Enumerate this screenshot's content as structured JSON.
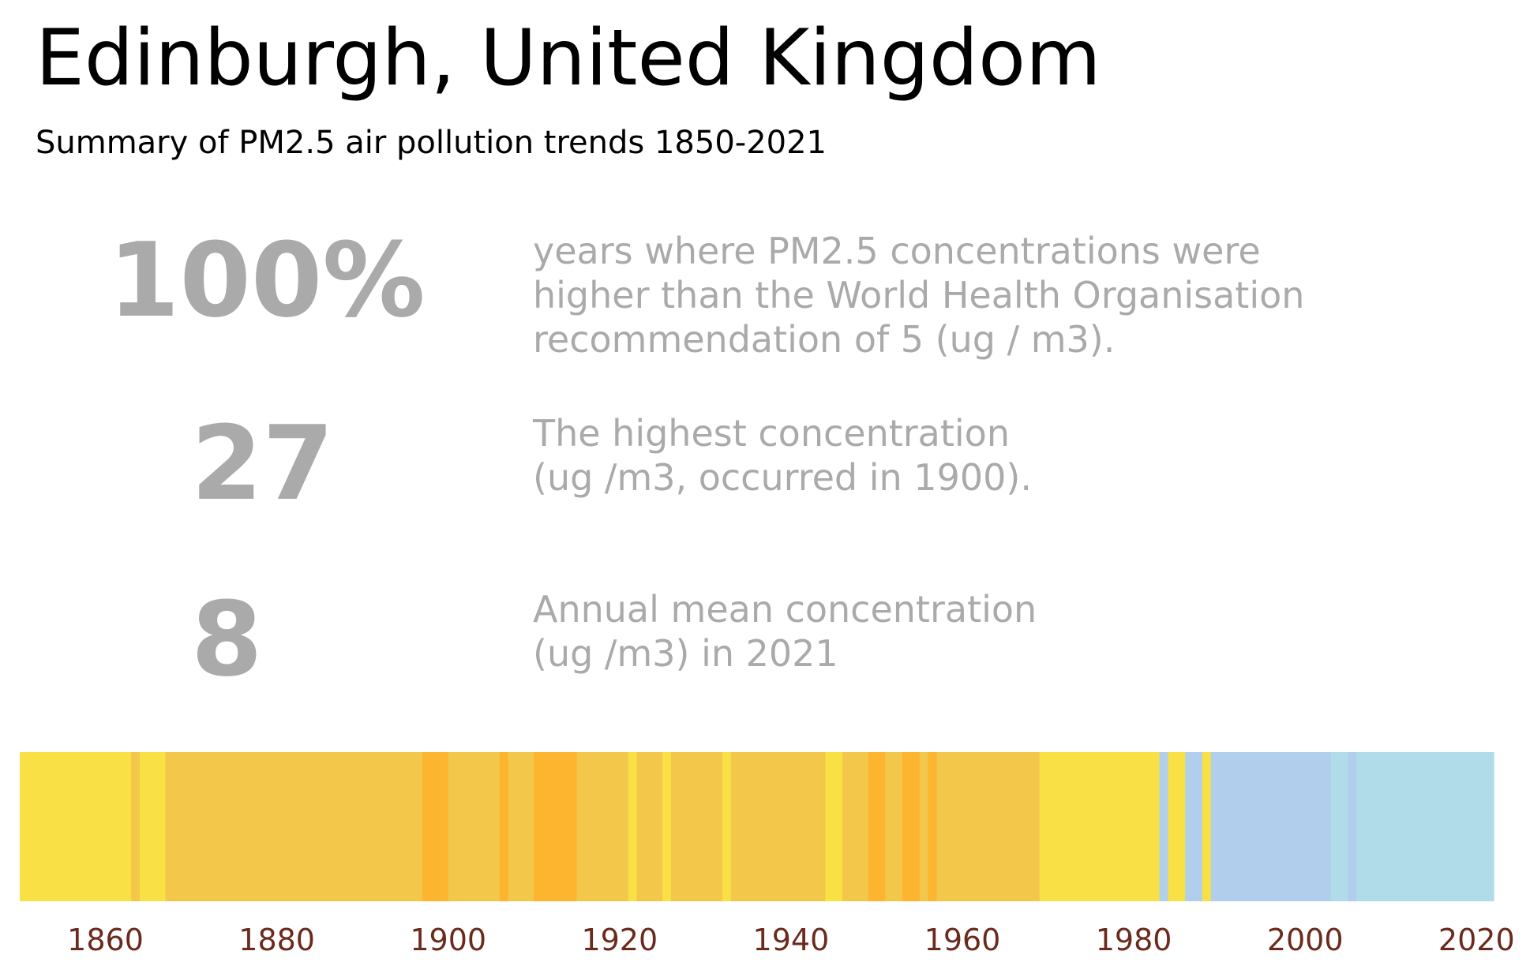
{
  "header": {
    "title": "Edinburgh, United Kingdom",
    "subtitle": "Summary of PM2.5 air pollution trends 1850-2021"
  },
  "stats": [
    {
      "value": "100%",
      "lines": [
        "years where PM2.5 concentrations were",
        "higher than the World Health Organisation",
        "recommendation of 5 (ug / m3)."
      ]
    },
    {
      "value": "27",
      "lines": [
        "The highest concentration",
        "(ug /m3, occurred in 1900)."
      ]
    },
    {
      "value": "8",
      "lines": [
        "Annual mean concentration",
        "(ug /m3) in 2021"
      ]
    }
  ],
  "colors": {
    "text_muted": "#aaaaaa",
    "tick_label": "#6b2a1c",
    "stripe_palette": {
      "yellow": "#f8e045",
      "gold": "#f3c74a",
      "orange": "#fdb42f",
      "blue": "#b1cfec",
      "lightblue": "#b0dbe8"
    }
  },
  "chart_data": {
    "type": "heatmap",
    "title": "",
    "xlabel": "",
    "ylabel": "",
    "xlim": [
      1850,
      2022
    ],
    "xticks": [
      1860,
      1880,
      1900,
      1920,
      1940,
      1960,
      1980,
      2000,
      2020
    ],
    "grid": false,
    "segments": [
      {
        "start": 1850,
        "end": 1863,
        "color": "yellow"
      },
      {
        "start": 1863,
        "end": 1864,
        "color": "gold"
      },
      {
        "start": 1864,
        "end": 1867,
        "color": "yellow"
      },
      {
        "start": 1867,
        "end": 1897,
        "color": "gold"
      },
      {
        "start": 1897,
        "end": 1900,
        "color": "orange"
      },
      {
        "start": 1900,
        "end": 1906,
        "color": "gold"
      },
      {
        "start": 1906,
        "end": 1907,
        "color": "orange"
      },
      {
        "start": 1907,
        "end": 1910,
        "color": "gold"
      },
      {
        "start": 1910,
        "end": 1915,
        "color": "orange"
      },
      {
        "start": 1915,
        "end": 1921,
        "color": "gold"
      },
      {
        "start": 1921,
        "end": 1922,
        "color": "yellow"
      },
      {
        "start": 1922,
        "end": 1925,
        "color": "gold"
      },
      {
        "start": 1925,
        "end": 1926,
        "color": "yellow"
      },
      {
        "start": 1926,
        "end": 1932,
        "color": "gold"
      },
      {
        "start": 1932,
        "end": 1933,
        "color": "yellow"
      },
      {
        "start": 1933,
        "end": 1944,
        "color": "gold"
      },
      {
        "start": 1944,
        "end": 1946,
        "color": "yellow"
      },
      {
        "start": 1946,
        "end": 1949,
        "color": "gold"
      },
      {
        "start": 1949,
        "end": 1951,
        "color": "orange"
      },
      {
        "start": 1951,
        "end": 1953,
        "color": "gold"
      },
      {
        "start": 1953,
        "end": 1955,
        "color": "orange"
      },
      {
        "start": 1955,
        "end": 1956,
        "color": "gold"
      },
      {
        "start": 1956,
        "end": 1957,
        "color": "orange"
      },
      {
        "start": 1957,
        "end": 1969,
        "color": "gold"
      },
      {
        "start": 1969,
        "end": 1983,
        "color": "yellow"
      },
      {
        "start": 1983,
        "end": 1984,
        "color": "blue"
      },
      {
        "start": 1984,
        "end": 1986,
        "color": "yellow"
      },
      {
        "start": 1986,
        "end": 1988,
        "color": "blue"
      },
      {
        "start": 1988,
        "end": 1989,
        "color": "yellow"
      },
      {
        "start": 1989,
        "end": 2003,
        "color": "blue"
      },
      {
        "start": 2003,
        "end": 2005,
        "color": "lightblue"
      },
      {
        "start": 2005,
        "end": 2006,
        "color": "blue"
      },
      {
        "start": 2006,
        "end": 2022,
        "color": "lightblue"
      }
    ]
  }
}
